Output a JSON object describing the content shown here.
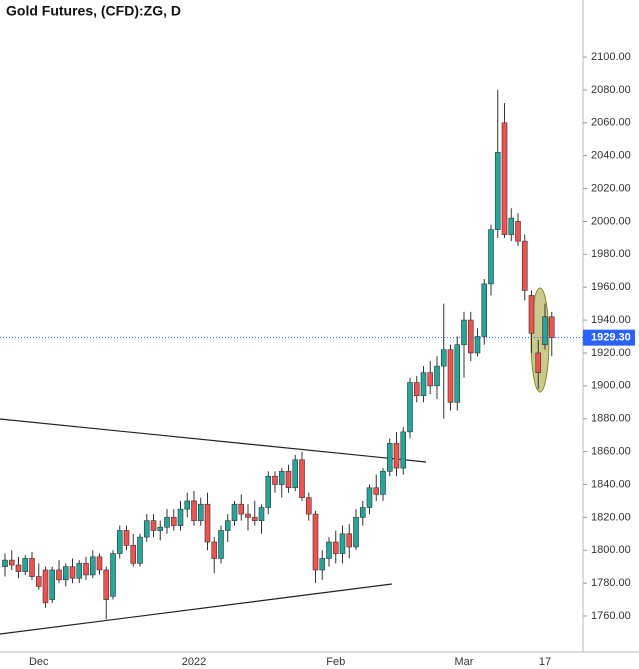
{
  "chart_data": {
    "type": "candlestick",
    "title": "Gold Futures, (CFD):ZG, D",
    "categories": [
      null,
      null,
      null,
      null,
      null,
      "Dec",
      null,
      null,
      null,
      null,
      null,
      null,
      null,
      null,
      null,
      null,
      null,
      null,
      null,
      null,
      null,
      null,
      null,
      null,
      null,
      null,
      null,
      null,
      "2022",
      null,
      null,
      null,
      null,
      null,
      null,
      null,
      null,
      null,
      null,
      null,
      null,
      null,
      null,
      null,
      null,
      null,
      null,
      null,
      null,
      "Feb",
      null,
      null,
      null,
      null,
      null,
      null,
      null,
      null,
      null,
      null,
      null,
      null,
      null,
      null,
      null,
      null,
      null,
      null,
      "Mar",
      null,
      null,
      null,
      null,
      null,
      null,
      null,
      null,
      null,
      null,
      null,
      "17",
      null
    ],
    "open": [
      1790,
      1794,
      1791,
      1787,
      1795,
      1784,
      1788,
      1770,
      1788,
      1782,
      1790,
      1783,
      1792,
      1785,
      1796,
      1788,
      1772,
      1798,
      1812,
      1803,
      1792,
      1808,
      1818,
      1812,
      1814,
      1820,
      1815,
      1825,
      1830,
      1818,
      1828,
      1805,
      1795,
      1812,
      1818,
      1828,
      1822,
      1820,
      1818,
      1826,
      1845,
      1840,
      1848,
      1838,
      1855,
      1832,
      1822,
      1788,
      1795,
      1805,
      1798,
      1810,
      1802,
      1820,
      1826,
      1838,
      1834,
      1848,
      1865,
      1850,
      1872,
      1902,
      1894,
      1908,
      1900,
      1912,
      1922,
      1890,
      1925,
      1940,
      1920,
      1930,
      1962,
      1995,
      2060,
      1992,
      2000,
      1988,
      1955,
      1920,
      1925,
      1942
    ],
    "high": [
      1798,
      1800,
      1796,
      1797,
      1799,
      1792,
      1790,
      1790,
      1794,
      1792,
      1795,
      1794,
      1796,
      1800,
      1798,
      1790,
      1800,
      1815,
      1815,
      1810,
      1810,
      1822,
      1822,
      1818,
      1825,
      1825,
      1830,
      1835,
      1836,
      1832,
      1835,
      1808,
      1815,
      1822,
      1830,
      1834,
      1828,
      1830,
      1828,
      1848,
      1848,
      1850,
      1852,
      1858,
      1860,
      1835,
      1824,
      1800,
      1808,
      1812,
      1815,
      1816,
      1825,
      1830,
      1840,
      1846,
      1850,
      1868,
      1872,
      1875,
      1905,
      1906,
      1912,
      1915,
      1918,
      1950,
      1925,
      1930,
      1945,
      1945,
      1935,
      1965,
      1998,
      2080,
      2072,
      2008,
      2005,
      1992,
      1958,
      1928,
      1950,
      1945
    ],
    "low": [
      1784,
      1788,
      1783,
      1785,
      1782,
      1776,
      1765,
      1768,
      1780,
      1778,
      1780,
      1780,
      1782,
      1783,
      1785,
      1758,
      1770,
      1795,
      1800,
      1790,
      1790,
      1805,
      1808,
      1806,
      1810,
      1812,
      1812,
      1820,
      1815,
      1815,
      1800,
      1786,
      1792,
      1805,
      1815,
      1818,
      1812,
      1815,
      1810,
      1822,
      1835,
      1832,
      1835,
      1836,
      1830,
      1818,
      1780,
      1782,
      1790,
      1792,
      1792,
      1795,
      1800,
      1815,
      1822,
      1830,
      1830,
      1845,
      1845,
      1846,
      1868,
      1890,
      1890,
      1895,
      1892,
      1880,
      1885,
      1885,
      1905,
      1915,
      1918,
      1925,
      1955,
      1990,
      1990,
      1988,
      1985,
      1952,
      1920,
      1898,
      1922,
      1918
    ],
    "close": [
      1794,
      1791,
      1787,
      1795,
      1784,
      1778,
      1768,
      1788,
      1782,
      1790,
      1783,
      1792,
      1785,
      1796,
      1788,
      1770,
      1798,
      1812,
      1803,
      1792,
      1808,
      1818,
      1812,
      1814,
      1820,
      1815,
      1825,
      1830,
      1818,
      1828,
      1805,
      1795,
      1812,
      1818,
      1828,
      1822,
      1820,
      1818,
      1826,
      1845,
      1840,
      1848,
      1838,
      1855,
      1832,
      1822,
      1788,
      1795,
      1805,
      1798,
      1810,
      1802,
      1820,
      1826,
      1838,
      1834,
      1848,
      1865,
      1850,
      1872,
      1902,
      1894,
      1908,
      1900,
      1912,
      1922,
      1890,
      1925,
      1940,
      1920,
      1930,
      1962,
      1995,
      2042,
      1992,
      2002,
      1988,
      1958,
      1932,
      1908,
      1942,
      1929.3
    ],
    "up_color": "#26a69a",
    "down_color": "#ef5350",
    "ylim": [
      1738.1,
      2134.7
    ],
    "yticks": [
      {
        "value": 1760,
        "label": "1760.00"
      },
      {
        "value": 1780,
        "label": "1780.00"
      },
      {
        "value": 1800,
        "label": "1800.00"
      },
      {
        "value": 1820,
        "label": "1820.00"
      },
      {
        "value": 1840,
        "label": "1840.00"
      },
      {
        "value": 1860,
        "label": "1860.00"
      },
      {
        "value": 1880,
        "label": "1880.00"
      },
      {
        "value": 1900,
        "label": "1900.00"
      },
      {
        "value": 1920,
        "label": "1920.00"
      },
      {
        "value": 1940,
        "label": "1940.00"
      },
      {
        "value": 1960,
        "label": "1960.00"
      },
      {
        "value": 1980,
        "label": "1980.00"
      },
      {
        "value": 2000,
        "label": "2000.00"
      },
      {
        "value": 2020,
        "label": "2020.00"
      },
      {
        "value": 2040,
        "label": "2040.00"
      },
      {
        "value": 2060,
        "label": "2060.00"
      },
      {
        "value": 2080,
        "label": "2080.00"
      },
      {
        "value": 2100,
        "label": "2100.00"
      }
    ],
    "current_price": {
      "value": 1929.3,
      "label": "1929.30"
    },
    "price_axis": "right",
    "grid": false
  }
}
